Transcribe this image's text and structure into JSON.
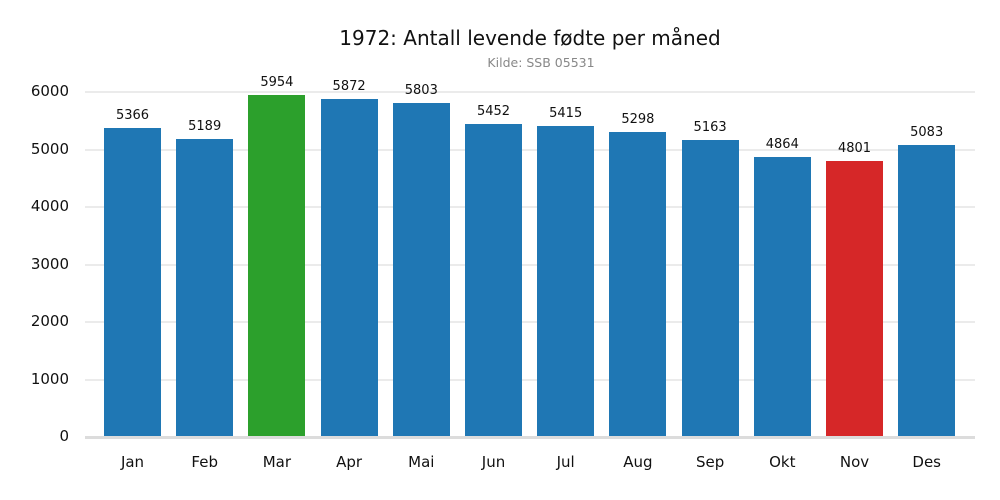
{
  "title": "1972: Antall levende fødte per måned",
  "subtitle": "Kilde: SSB 05531",
  "colors": {
    "default": "#1f77b4",
    "max": "#2ca02c",
    "min": "#d62728"
  },
  "chart_data": {
    "type": "bar",
    "title": "1972: Antall levende fødte per måned",
    "subtitle": "Kilde: SSB 05531",
    "xlabel": "",
    "ylabel": "",
    "categories": [
      "Jan",
      "Feb",
      "Mar",
      "Apr",
      "Mai",
      "Jun",
      "Jul",
      "Aug",
      "Sep",
      "Okt",
      "Nov",
      "Des"
    ],
    "values": [
      5366,
      5189,
      5954,
      5872,
      5803,
      5452,
      5415,
      5298,
      5163,
      4864,
      4801,
      5083
    ],
    "bar_colors": [
      "#1f77b4",
      "#1f77b4",
      "#2ca02c",
      "#1f77b4",
      "#1f77b4",
      "#1f77b4",
      "#1f77b4",
      "#1f77b4",
      "#1f77b4",
      "#1f77b4",
      "#d62728",
      "#1f77b4"
    ],
    "highlight": {
      "max": "Mar",
      "min": "Nov"
    },
    "yticks": [
      0,
      1000,
      2000,
      3000,
      4000,
      5000,
      6000
    ],
    "ylim": [
      0,
      6000
    ],
    "grid": true,
    "legend": null,
    "data_labels": true
  }
}
